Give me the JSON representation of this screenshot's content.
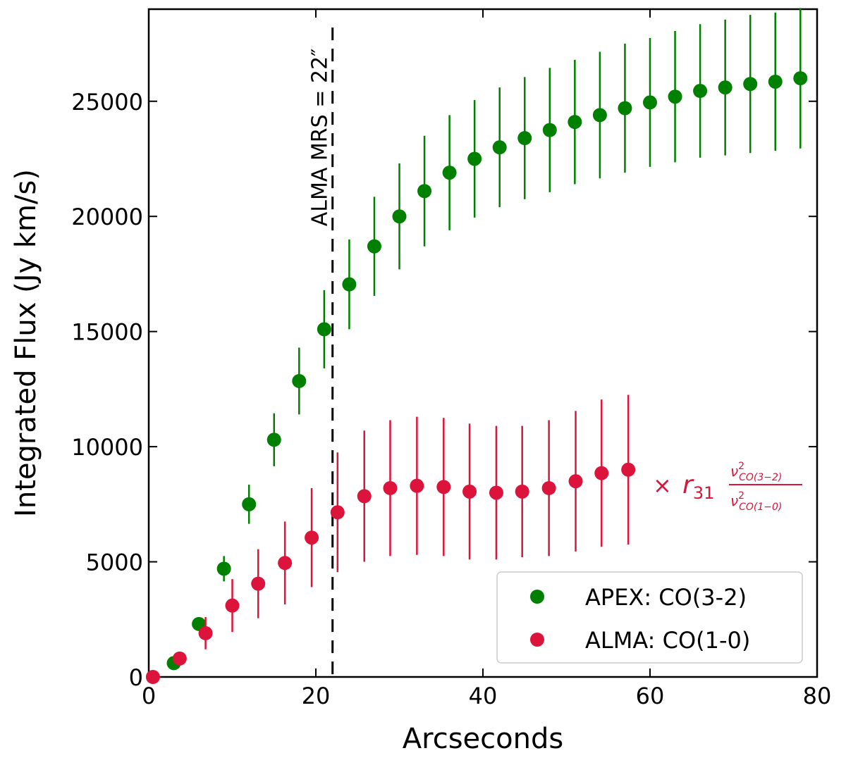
{
  "chart_data": {
    "type": "scatter",
    "title": "",
    "xlabel": "Arcseconds",
    "ylabel": "Integrated Flux (Jy km/s)",
    "xlim": [
      0,
      80
    ],
    "ylim": [
      0,
      29000
    ],
    "x_ticks": [
      0,
      20,
      40,
      60,
      80
    ],
    "y_ticks": [
      0,
      5000,
      10000,
      15000,
      20000,
      25000
    ],
    "grid": false,
    "legend_position": "bottom-right",
    "series": [
      {
        "name": "APEX: CO(3-2)",
        "color": "#008000",
        "x": [
          3.0,
          6.0,
          9.0,
          12.0,
          15.0,
          18.0,
          21.0,
          24.0,
          27.0,
          30.0,
          33.0,
          36.0,
          39.0,
          42.0,
          45.0,
          48.0,
          51.0,
          54.0,
          57.0,
          60.0,
          63.0,
          66.0,
          69.0,
          72.0,
          75.0,
          78.0
        ],
        "y": [
          600,
          2300,
          4700,
          7500,
          10300,
          12850,
          15100,
          17050,
          18700,
          20000,
          21100,
          21900,
          22500,
          23000,
          23400,
          23750,
          24100,
          24400,
          24700,
          24950,
          25200,
          25450,
          25600,
          25750,
          25850,
          26000
        ],
        "err": [
          150,
          250,
          550,
          850,
          1150,
          1450,
          1700,
          1950,
          2150,
          2300,
          2400,
          2500,
          2550,
          2600,
          2650,
          2700,
          2700,
          2750,
          2800,
          2800,
          2850,
          2900,
          2950,
          3000,
          3000,
          3050
        ]
      },
      {
        "name": "ALMA: CO(1-0)",
        "color": "#dc143c",
        "x": [
          0.5,
          3.7,
          6.8,
          10.0,
          13.1,
          16.3,
          19.5,
          22.6,
          25.8,
          28.9,
          32.1,
          35.3,
          38.4,
          41.6,
          44.7,
          47.9,
          51.1,
          54.2,
          57.4
        ],
        "y": [
          0,
          800,
          1900,
          3100,
          4050,
          4950,
          6050,
          7150,
          7850,
          8200,
          8300,
          8250,
          8050,
          8000,
          8050,
          8200,
          8500,
          8850,
          9000
        ],
        "err": [
          100,
          250,
          700,
          1150,
          1500,
          1800,
          2150,
          2600,
          2850,
          2950,
          3000,
          3000,
          2950,
          2900,
          2850,
          2950,
          3050,
          3200,
          3250
        ]
      }
    ],
    "annotations": [
      {
        "type": "vline",
        "x": 22,
        "style": "dashed",
        "color": "#000000",
        "label": "ALMA MRS = 22″"
      },
      {
        "type": "text",
        "color": "#dc143c",
        "prefix": "× ",
        "symbol": "r",
        "subscript": "31",
        "frac_symbol": "ν",
        "frac_exp": "2",
        "numerator_sub": "CO(3−2)",
        "denominator_sub": "CO(1−0)"
      }
    ]
  }
}
